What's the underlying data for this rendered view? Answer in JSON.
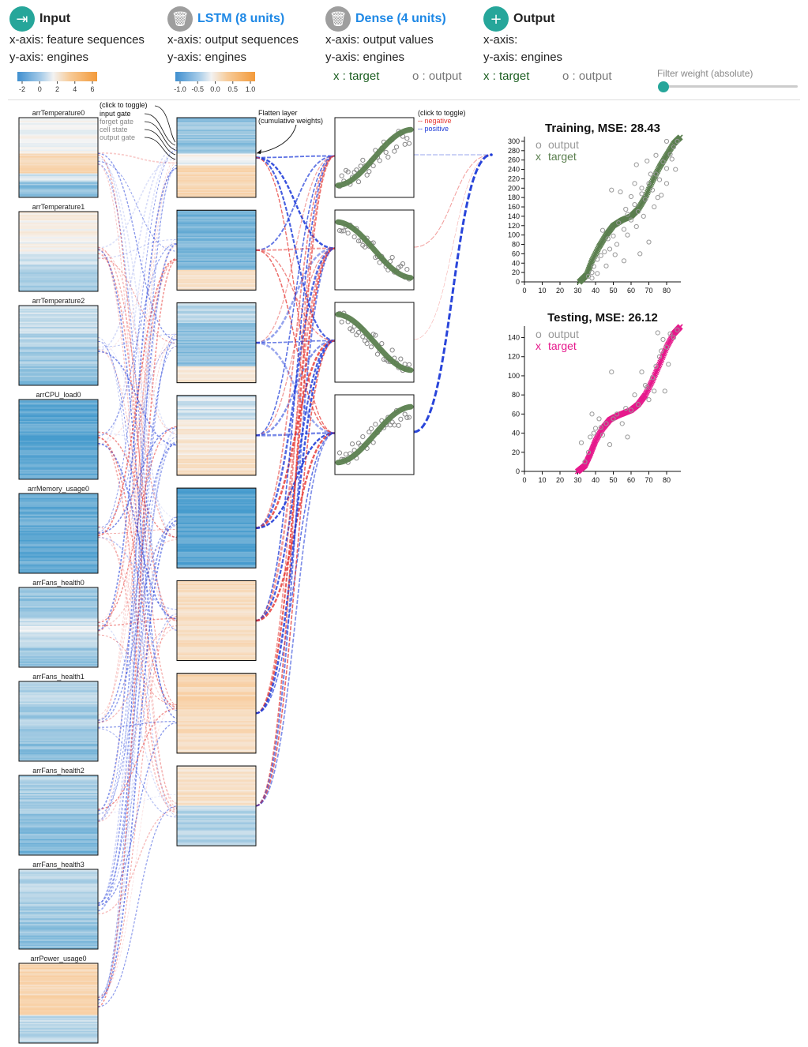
{
  "layers": [
    {
      "title": "Input",
      "x_axis": "x-axis: feature sequences",
      "y_axis": "y-axis: engines",
      "icon": "input-icon",
      "color": "#26a69a"
    },
    {
      "title": "LSTM (8 units)",
      "x_axis": "x-axis: output sequences",
      "y_axis": "y-axis: engines",
      "icon": "trash-icon",
      "color": "#1e88e5"
    },
    {
      "title": "Dense (4 units)",
      "x_axis": "x-axis: output values",
      "y_axis": "y-axis: engines",
      "icon": "trash-icon",
      "color": "#1e88e5"
    },
    {
      "title": "Output",
      "x_axis": "x-axis:",
      "y_axis": "y-axis: engines",
      "icon": "plus-icon",
      "color": "#26a69a"
    }
  ],
  "input_colorbar": {
    "ticks": [
      "-2",
      "0",
      "2",
      "4",
      "6"
    ]
  },
  "lstm_colorbar": {
    "ticks": [
      "-1.0",
      "-0.5",
      "0.0",
      "0.5",
      "1.0"
    ]
  },
  "legends": {
    "dense_x": "x : target",
    "dense_o": "o : output",
    "output_x": "x : target",
    "output_o": "o : output"
  },
  "filter": {
    "label": "Filter weight (absolute)",
    "value": 0
  },
  "gate_toggle": {
    "heading": "(click to toggle)",
    "items": [
      "input gate",
      "forget gate",
      "cell state",
      "output gate"
    ]
  },
  "flatten_note": [
    "Flatten layer",
    "(cumulative weights)"
  ],
  "sign_toggle": {
    "heading": "(click to toggle)",
    "negative": "-- negative",
    "positive": "-- positive"
  },
  "features": [
    "arrTemperature0",
    "arrTemperature1",
    "arrTemperature2",
    "arrCPU_load0",
    "arrMemory_usage0",
    "arrFans_health0",
    "arrFans_health1",
    "arrFans_health2",
    "arrFans_health3",
    "arrPower_usage0"
  ],
  "colors": {
    "negative": "#e53935",
    "positive": "#1e3bd8",
    "target_train": "#5b7f4f",
    "target_test": "#e6198c",
    "output_pts": "#999999",
    "accent": "#26a69a"
  },
  "chart_data": [
    {
      "type": "scatter",
      "title": "Training, MSE: 28.43",
      "legend": [
        "output",
        "target"
      ],
      "xticks": [
        "0",
        "10",
        "20",
        "30",
        "40",
        "50",
        "60",
        "70",
        "80"
      ],
      "yticks": [
        "0",
        "20",
        "40",
        "60",
        "80",
        "100",
        "120",
        "140",
        "160",
        "180",
        "200",
        "220",
        "240",
        "260",
        "280",
        "300"
      ],
      "xlim": [
        0,
        88
      ],
      "ylim": [
        0,
        310
      ],
      "target_curve": [
        [
          31,
          0
        ],
        [
          35,
          15
        ],
        [
          38,
          45
        ],
        [
          42,
          75
        ],
        [
          46,
          100
        ],
        [
          50,
          120
        ],
        [
          55,
          132
        ],
        [
          60,
          140
        ],
        [
          64,
          155
        ],
        [
          68,
          180
        ],
        [
          72,
          215
        ],
        [
          76,
          245
        ],
        [
          80,
          270
        ],
        [
          84,
          295
        ],
        [
          88,
          310
        ]
      ],
      "output": [
        [
          36,
          12
        ],
        [
          38,
          20
        ],
        [
          39,
          33
        ],
        [
          41,
          48
        ],
        [
          43,
          56
        ],
        [
          45,
          64
        ],
        [
          48,
          70
        ],
        [
          51,
          58
        ],
        [
          44,
          110
        ],
        [
          47,
          92
        ],
        [
          50,
          98
        ],
        [
          53,
          126
        ],
        [
          56,
          112
        ],
        [
          58,
          144
        ],
        [
          60,
          132
        ],
        [
          62,
          165
        ],
        [
          64,
          150
        ],
        [
          66,
          188
        ],
        [
          68,
          176
        ],
        [
          70,
          210
        ],
        [
          72,
          196
        ],
        [
          74,
          230
        ],
        [
          76,
          218
        ],
        [
          78,
          256
        ],
        [
          80,
          242
        ],
        [
          82,
          272
        ],
        [
          84,
          288
        ],
        [
          86,
          300
        ],
        [
          52,
          80
        ],
        [
          58,
          100
        ],
        [
          63,
          118
        ],
        [
          66,
          200
        ],
        [
          62,
          210
        ],
        [
          54,
          192
        ],
        [
          49,
          196
        ],
        [
          69,
          258
        ],
        [
          71,
          230
        ],
        [
          77,
          185
        ],
        [
          80,
          210
        ],
        [
          83,
          262
        ],
        [
          74,
          270
        ],
        [
          70,
          85
        ],
        [
          65,
          60
        ],
        [
          57,
          155
        ],
        [
          60,
          182
        ],
        [
          75,
          180
        ],
        [
          80,
          300
        ],
        [
          63,
          250
        ],
        [
          41,
          18
        ],
        [
          46,
          34
        ],
        [
          38,
          8
        ],
        [
          56,
          45
        ],
        [
          67,
          140
        ],
        [
          73,
          160
        ],
        [
          85,
          240
        ]
      ]
    },
    {
      "type": "scatter",
      "title": "Testing, MSE: 26.12",
      "legend": [
        "output",
        "target"
      ],
      "xticks": [
        "0",
        "10",
        "20",
        "30",
        "40",
        "50",
        "60",
        "70",
        "80"
      ],
      "yticks": [
        "0",
        "20",
        "40",
        "60",
        "80",
        "100",
        "120",
        "140"
      ],
      "xlim": [
        0,
        88
      ],
      "ylim": [
        0,
        152
      ],
      "target_curve": [
        [
          30,
          0
        ],
        [
          34,
          6
        ],
        [
          37,
          18
        ],
        [
          40,
          32
        ],
        [
          44,
          45
        ],
        [
          48,
          54
        ],
        [
          52,
          58
        ],
        [
          56,
          61
        ],
        [
          60,
          64
        ],
        [
          64,
          70
        ],
        [
          68,
          80
        ],
        [
          72,
          95
        ],
        [
          76,
          112
        ],
        [
          80,
          130
        ],
        [
          84,
          144
        ],
        [
          88,
          152
        ]
      ],
      "output": [
        [
          32,
          30
        ],
        [
          34,
          10
        ],
        [
          36,
          20
        ],
        [
          37,
          36
        ],
        [
          38,
          60
        ],
        [
          40,
          45
        ],
        [
          42,
          55
        ],
        [
          44,
          38
        ],
        [
          46,
          50
        ],
        [
          48,
          28
        ],
        [
          50,
          55
        ],
        [
          52,
          60
        ],
        [
          55,
          50
        ],
        [
          58,
          36
        ],
        [
          60,
          64
        ],
        [
          62,
          80
        ],
        [
          64,
          70
        ],
        [
          66,
          104
        ],
        [
          68,
          90
        ],
        [
          70,
          75
        ],
        [
          72,
          98
        ],
        [
          74,
          110
        ],
        [
          76,
          120
        ],
        [
          78,
          138
        ],
        [
          80,
          130
        ],
        [
          82,
          144
        ],
        [
          84,
          140
        ],
        [
          86,
          148
        ],
        [
          69,
          88
        ],
        [
          75,
          145
        ],
        [
          77,
          126
        ],
        [
          79,
          84
        ],
        [
          81,
          112
        ],
        [
          49,
          104
        ],
        [
          43,
          46
        ],
        [
          57,
          66
        ],
        [
          73,
          84
        ],
        [
          39,
          40
        ]
      ]
    }
  ]
}
